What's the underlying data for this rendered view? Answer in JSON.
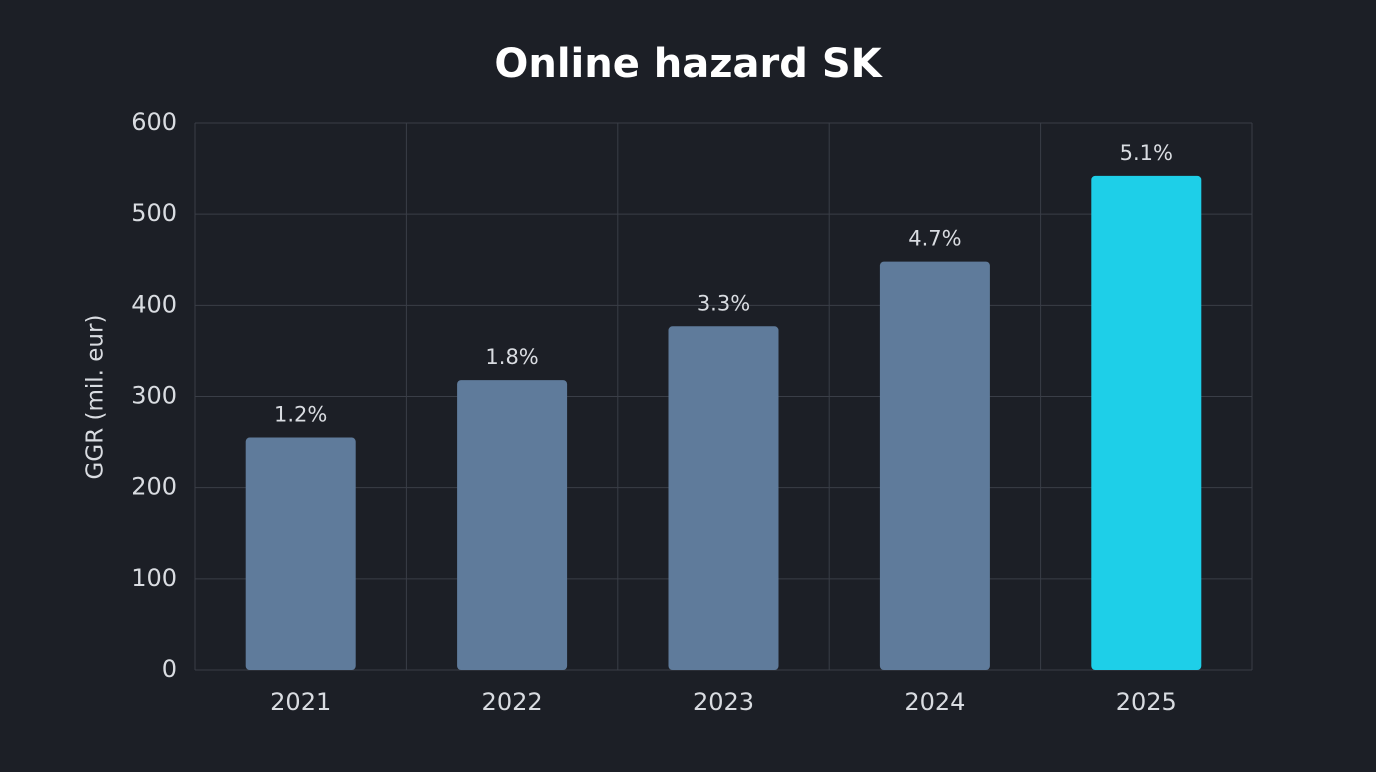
{
  "chart_data": {
    "type": "bar",
    "title": "Online hazard SK",
    "y_label": "GGR (mil. eur)",
    "categories": [
      "2021",
      "2022",
      "2023",
      "2024",
      "2025"
    ],
    "values": [
      255,
      318,
      377,
      448,
      542
    ],
    "bar_labels": [
      "1.2%",
      "1.8%",
      "3.3%",
      "4.7%",
      "5.1%"
    ],
    "colors": [
      "#5f7b9b",
      "#5f7b9b",
      "#5f7b9b",
      "#5f7b9b",
      "#1ecfe8"
    ],
    "ylim": [
      0,
      600
    ],
    "yticks": [
      0,
      100,
      200,
      300,
      400,
      500,
      600
    ],
    "grid": true
  }
}
